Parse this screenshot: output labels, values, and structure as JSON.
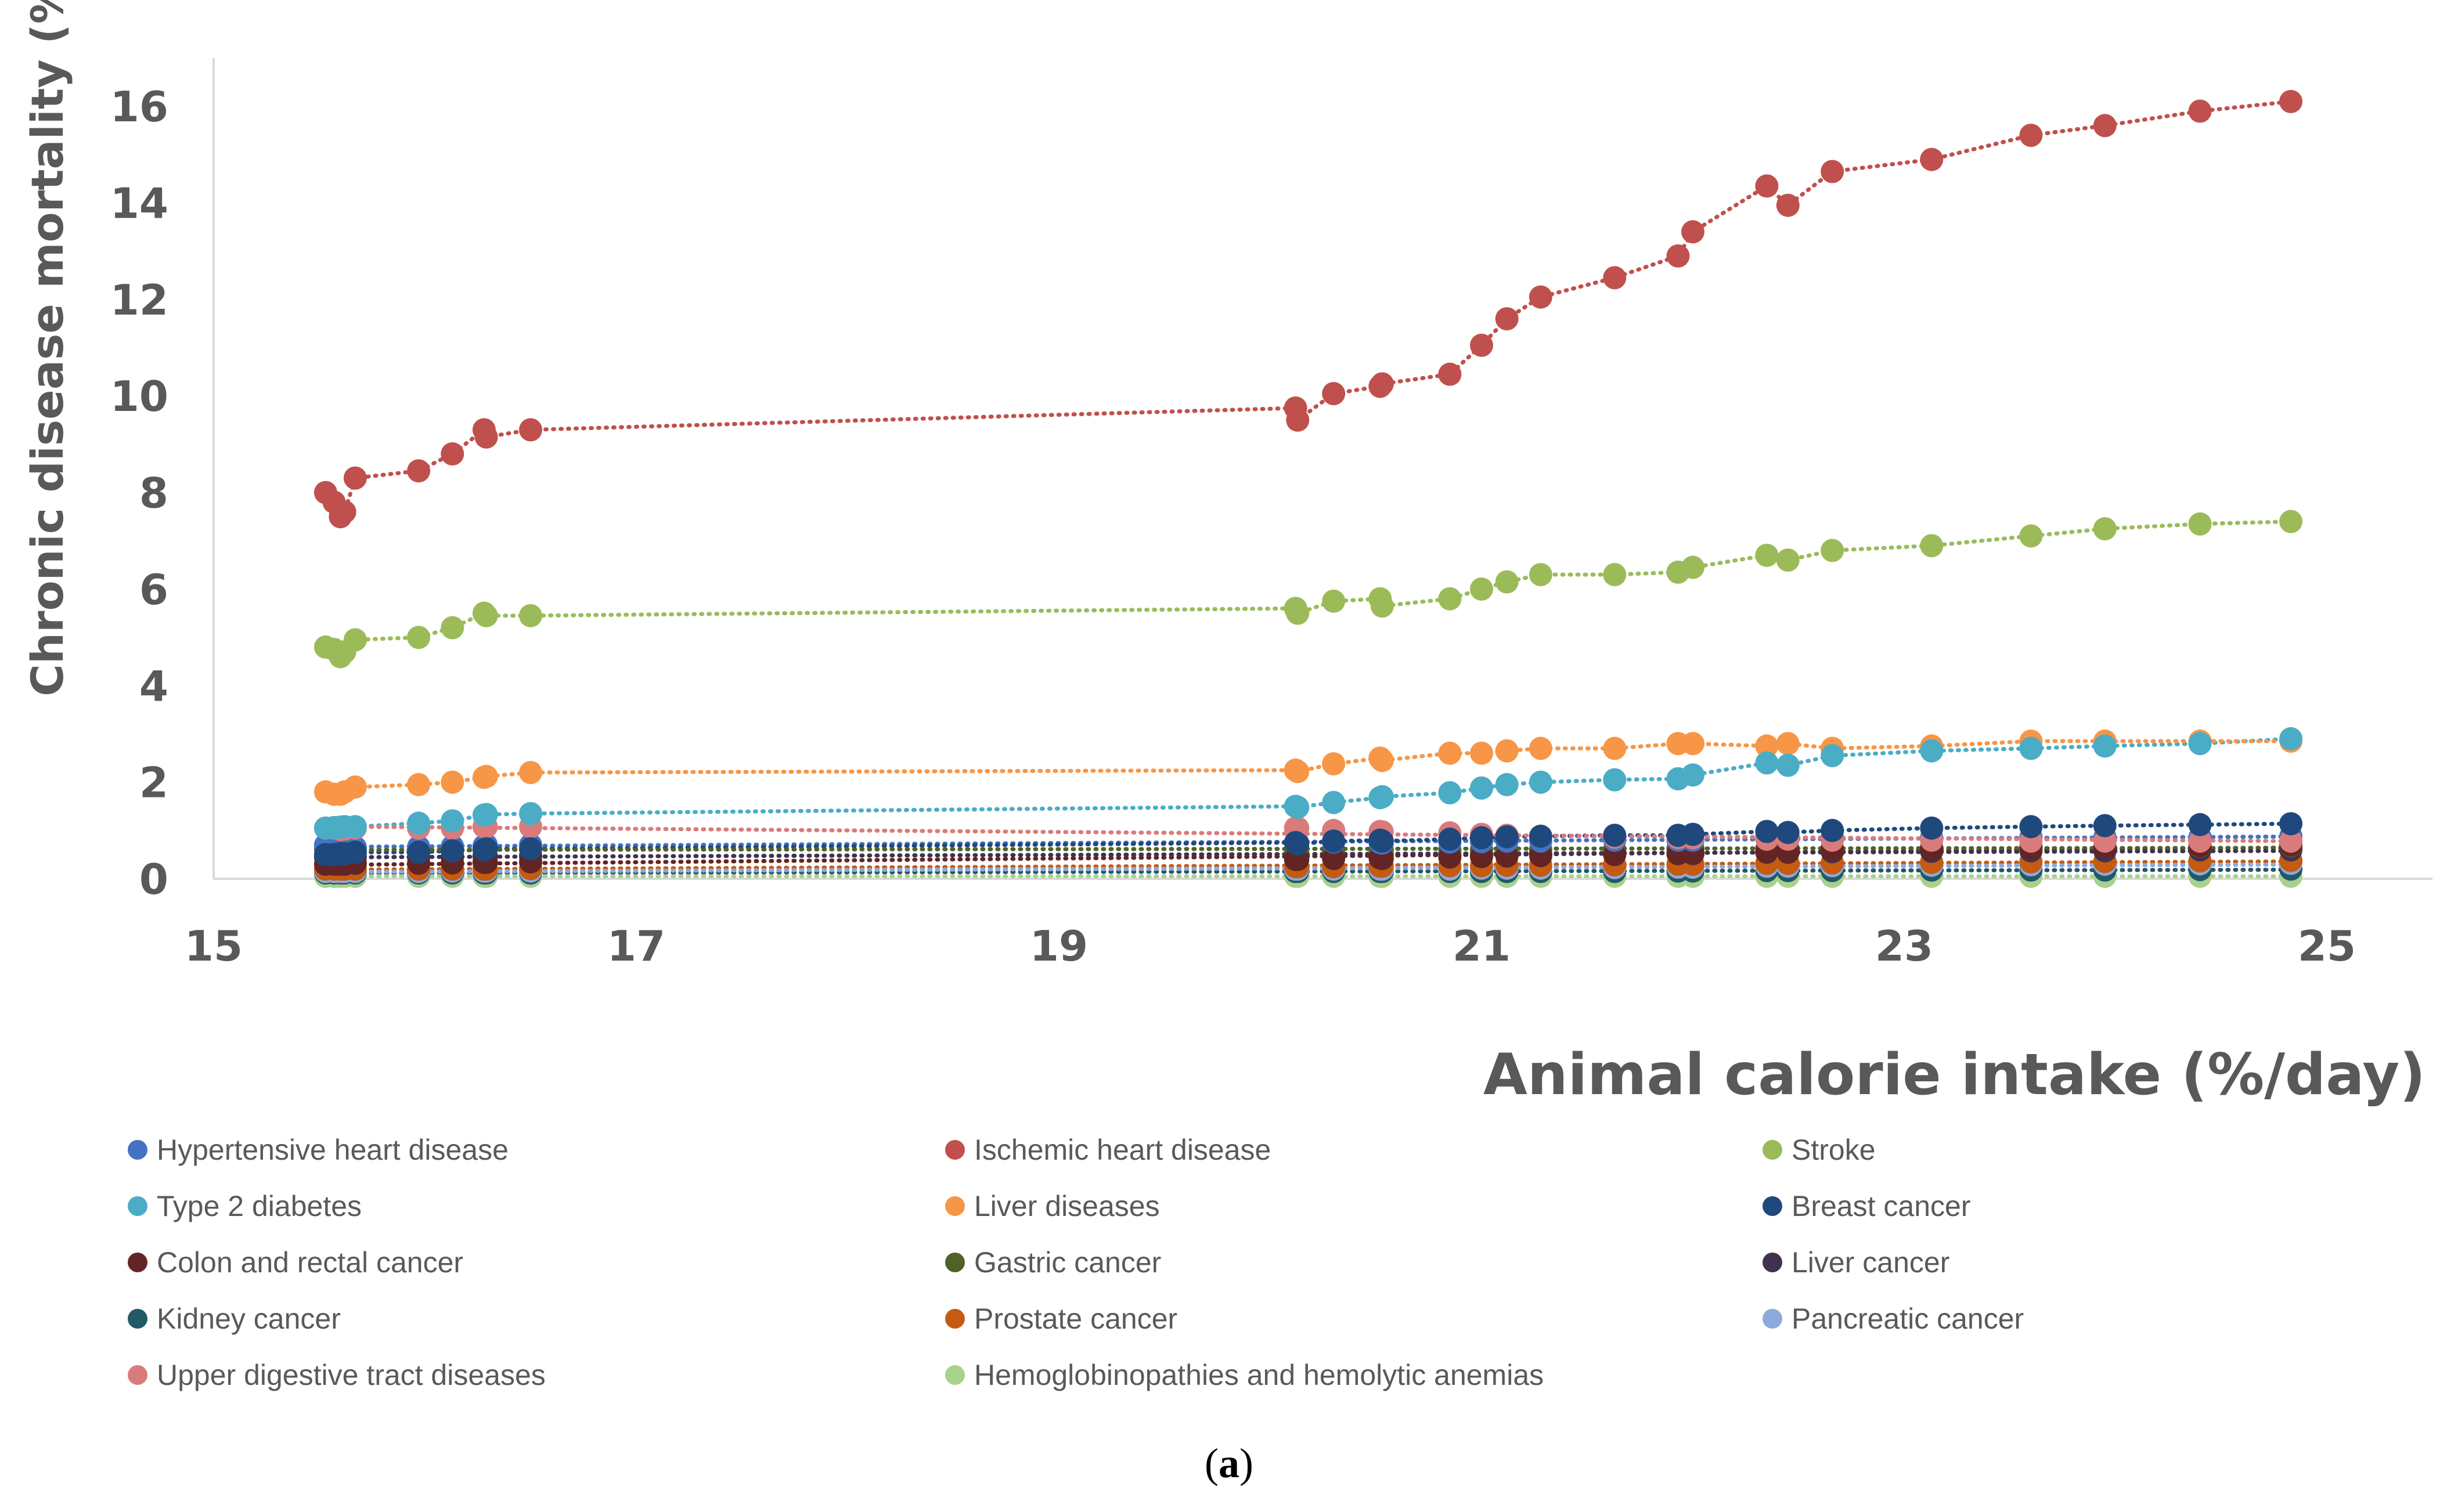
{
  "chart_data": {
    "type": "scatter",
    "title": "",
    "xlabel": "Animal calorie intake (%/day)",
    "ylabel": "Chronic disease mortality (%)",
    "xlim": [
      15,
      25.5
    ],
    "ylim": [
      0,
      17
    ],
    "xticks": [
      15,
      17,
      19,
      21,
      23,
      25
    ],
    "yticks": [
      0,
      2,
      4,
      6,
      8,
      10,
      12,
      14,
      16
    ],
    "x_tick_labels": [
      "15",
      "17",
      "19",
      "21",
      "23",
      "25"
    ],
    "y_tick_labels": [
      "0",
      "2",
      "4",
      "6",
      "8",
      "10",
      "12",
      "14",
      "16"
    ],
    "x": [
      15.53,
      15.57,
      15.6,
      15.62,
      15.67,
      15.97,
      16.13,
      16.28,
      16.29,
      16.5,
      20.12,
      20.13,
      20.3,
      20.52,
      20.53,
      20.85,
      21.0,
      21.12,
      21.28,
      21.63,
      21.93,
      22.0,
      22.35,
      22.45,
      22.66,
      23.13,
      23.6,
      23.95,
      24.4,
      24.83
    ],
    "series": [
      {
        "name": "Hypertensive heart disease",
        "color": "#4472C4",
        "values": [
          0.7,
          0.68,
          0.66,
          0.65,
          0.65,
          0.66,
          0.67,
          0.68,
          0.7,
          0.7,
          0.75,
          0.74,
          0.76,
          0.75,
          0.74,
          0.76,
          0.77,
          0.78,
          0.78,
          0.8,
          0.8,
          0.8,
          0.85,
          0.85,
          0.85,
          0.85,
          0.86,
          0.86,
          0.86,
          0.88
        ]
      },
      {
        "name": "Ischemic heart disease",
        "color": "#C0504D",
        "values": [
          8.0,
          7.8,
          7.5,
          7.6,
          8.3,
          8.45,
          8.8,
          9.3,
          9.15,
          9.3,
          9.75,
          9.5,
          10.05,
          10.2,
          10.25,
          10.45,
          11.05,
          11.6,
          12.05,
          12.45,
          12.9,
          13.4,
          14.35,
          13.95,
          14.65,
          14.9,
          15.4,
          15.6,
          15.9,
          16.1
        ]
      },
      {
        "name": "Stroke",
        "color": "#9BBB59",
        "values": [
          4.8,
          4.75,
          4.6,
          4.7,
          4.95,
          5.0,
          5.2,
          5.5,
          5.45,
          5.45,
          5.6,
          5.5,
          5.75,
          5.8,
          5.65,
          5.8,
          6.0,
          6.15,
          6.3,
          6.3,
          6.35,
          6.45,
          6.7,
          6.6,
          6.8,
          6.9,
          7.1,
          7.25,
          7.35,
          7.4
        ]
      },
      {
        "name": "Type 2 diabetes",
        "color": "#4BACC6",
        "values": [
          1.05,
          1.06,
          1.07,
          1.08,
          1.08,
          1.15,
          1.2,
          1.32,
          1.33,
          1.35,
          1.5,
          1.48,
          1.58,
          1.68,
          1.7,
          1.78,
          1.88,
          1.95,
          2.0,
          2.05,
          2.07,
          2.15,
          2.4,
          2.35,
          2.55,
          2.65,
          2.7,
          2.75,
          2.8,
          2.9
        ]
      },
      {
        "name": "Liver diseases",
        "color": "#F79646",
        "values": [
          1.8,
          1.75,
          1.75,
          1.8,
          1.9,
          1.95,
          2.0,
          2.1,
          2.12,
          2.2,
          2.25,
          2.22,
          2.38,
          2.5,
          2.45,
          2.6,
          2.6,
          2.65,
          2.7,
          2.7,
          2.8,
          2.8,
          2.75,
          2.8,
          2.7,
          2.75,
          2.85,
          2.85,
          2.85,
          2.85
        ]
      },
      {
        "name": "Breast cancer",
        "color": "#1F497D",
        "values": [
          0.5,
          0.5,
          0.52,
          0.52,
          0.55,
          0.55,
          0.58,
          0.6,
          0.62,
          0.62,
          0.75,
          0.72,
          0.78,
          0.8,
          0.78,
          0.82,
          0.85,
          0.87,
          0.88,
          0.9,
          0.9,
          0.92,
          0.98,
          0.96,
          1.0,
          1.05,
          1.08,
          1.1,
          1.12,
          1.14
        ]
      },
      {
        "name": "Colon and rectal cancer",
        "color": "#632523",
        "values": [
          0.3,
          0.3,
          0.3,
          0.3,
          0.32,
          0.32,
          0.33,
          0.34,
          0.34,
          0.35,
          0.4,
          0.4,
          0.42,
          0.43,
          0.42,
          0.45,
          0.46,
          0.47,
          0.48,
          0.5,
          0.52,
          0.53,
          0.56,
          0.55,
          0.6,
          0.62,
          0.64,
          0.66,
          0.68,
          0.7
        ]
      },
      {
        "name": "Gastric cancer",
        "color": "#4F6228",
        "values": [
          0.62,
          0.6,
          0.6,
          0.61,
          0.6,
          0.6,
          0.6,
          0.62,
          0.62,
          0.62,
          0.6,
          0.6,
          0.6,
          0.6,
          0.6,
          0.6,
          0.6,
          0.6,
          0.6,
          0.6,
          0.62,
          0.62,
          0.62,
          0.62,
          0.64,
          0.65,
          0.66,
          0.66,
          0.67,
          0.68
        ]
      },
      {
        "name": "Liver cancer",
        "color": "#403151",
        "values": [
          0.45,
          0.45,
          0.45,
          0.45,
          0.45,
          0.45,
          0.46,
          0.47,
          0.47,
          0.47,
          0.5,
          0.5,
          0.5,
          0.5,
          0.5,
          0.5,
          0.5,
          0.5,
          0.51,
          0.52,
          0.52,
          0.52,
          0.55,
          0.55,
          0.56,
          0.57,
          0.58,
          0.58,
          0.6,
          0.6
        ]
      },
      {
        "name": "Kidney cancer",
        "color": "#215967",
        "values": [
          0.12,
          0.12,
          0.12,
          0.12,
          0.12,
          0.12,
          0.12,
          0.12,
          0.12,
          0.12,
          0.15,
          0.15,
          0.15,
          0.15,
          0.15,
          0.15,
          0.15,
          0.15,
          0.15,
          0.15,
          0.16,
          0.16,
          0.17,
          0.17,
          0.17,
          0.18,
          0.18,
          0.18,
          0.19,
          0.2
        ]
      },
      {
        "name": "Prostate cancer",
        "color": "#C55A11",
        "values": [
          0.2,
          0.2,
          0.2,
          0.2,
          0.2,
          0.2,
          0.2,
          0.2,
          0.2,
          0.21,
          0.25,
          0.25,
          0.25,
          0.26,
          0.26,
          0.27,
          0.27,
          0.28,
          0.28,
          0.29,
          0.3,
          0.3,
          0.32,
          0.32,
          0.33,
          0.34,
          0.35,
          0.36,
          0.37,
          0.38
        ]
      },
      {
        "name": "Pancreatic cancer",
        "color": "#8EA9DB",
        "values": [
          0.15,
          0.15,
          0.15,
          0.15,
          0.15,
          0.15,
          0.16,
          0.16,
          0.16,
          0.16,
          0.2,
          0.2,
          0.2,
          0.2,
          0.2,
          0.2,
          0.22,
          0.22,
          0.22,
          0.23,
          0.24,
          0.24,
          0.26,
          0.26,
          0.27,
          0.28,
          0.29,
          0.3,
          0.31,
          0.32
        ]
      },
      {
        "name": "Upper digestive tract diseases",
        "color": "#DA7B7B",
        "values": [
          1.05,
          1.05,
          1.02,
          1.03,
          1.05,
          1.05,
          1.05,
          1.08,
          1.08,
          1.08,
          1.05,
          1.05,
          1.0,
          0.98,
          0.97,
          0.95,
          0.92,
          0.9,
          0.88,
          0.86,
          0.85,
          0.85,
          0.82,
          0.82,
          0.8,
          0.8,
          0.78,
          0.78,
          0.78,
          0.78
        ]
      },
      {
        "name": "Hemoglobinopathies and hemolytic anemias",
        "color": "#A9D18E",
        "values": [
          0.05,
          0.05,
          0.05,
          0.05,
          0.05,
          0.05,
          0.05,
          0.05,
          0.05,
          0.05,
          0.05,
          0.05,
          0.05,
          0.05,
          0.05,
          0.05,
          0.05,
          0.05,
          0.05,
          0.05,
          0.05,
          0.05,
          0.05,
          0.05,
          0.05,
          0.05,
          0.05,
          0.05,
          0.05,
          0.05
        ]
      }
    ]
  },
  "caption": {
    "open": "(",
    "label": "a",
    "close": ")"
  }
}
